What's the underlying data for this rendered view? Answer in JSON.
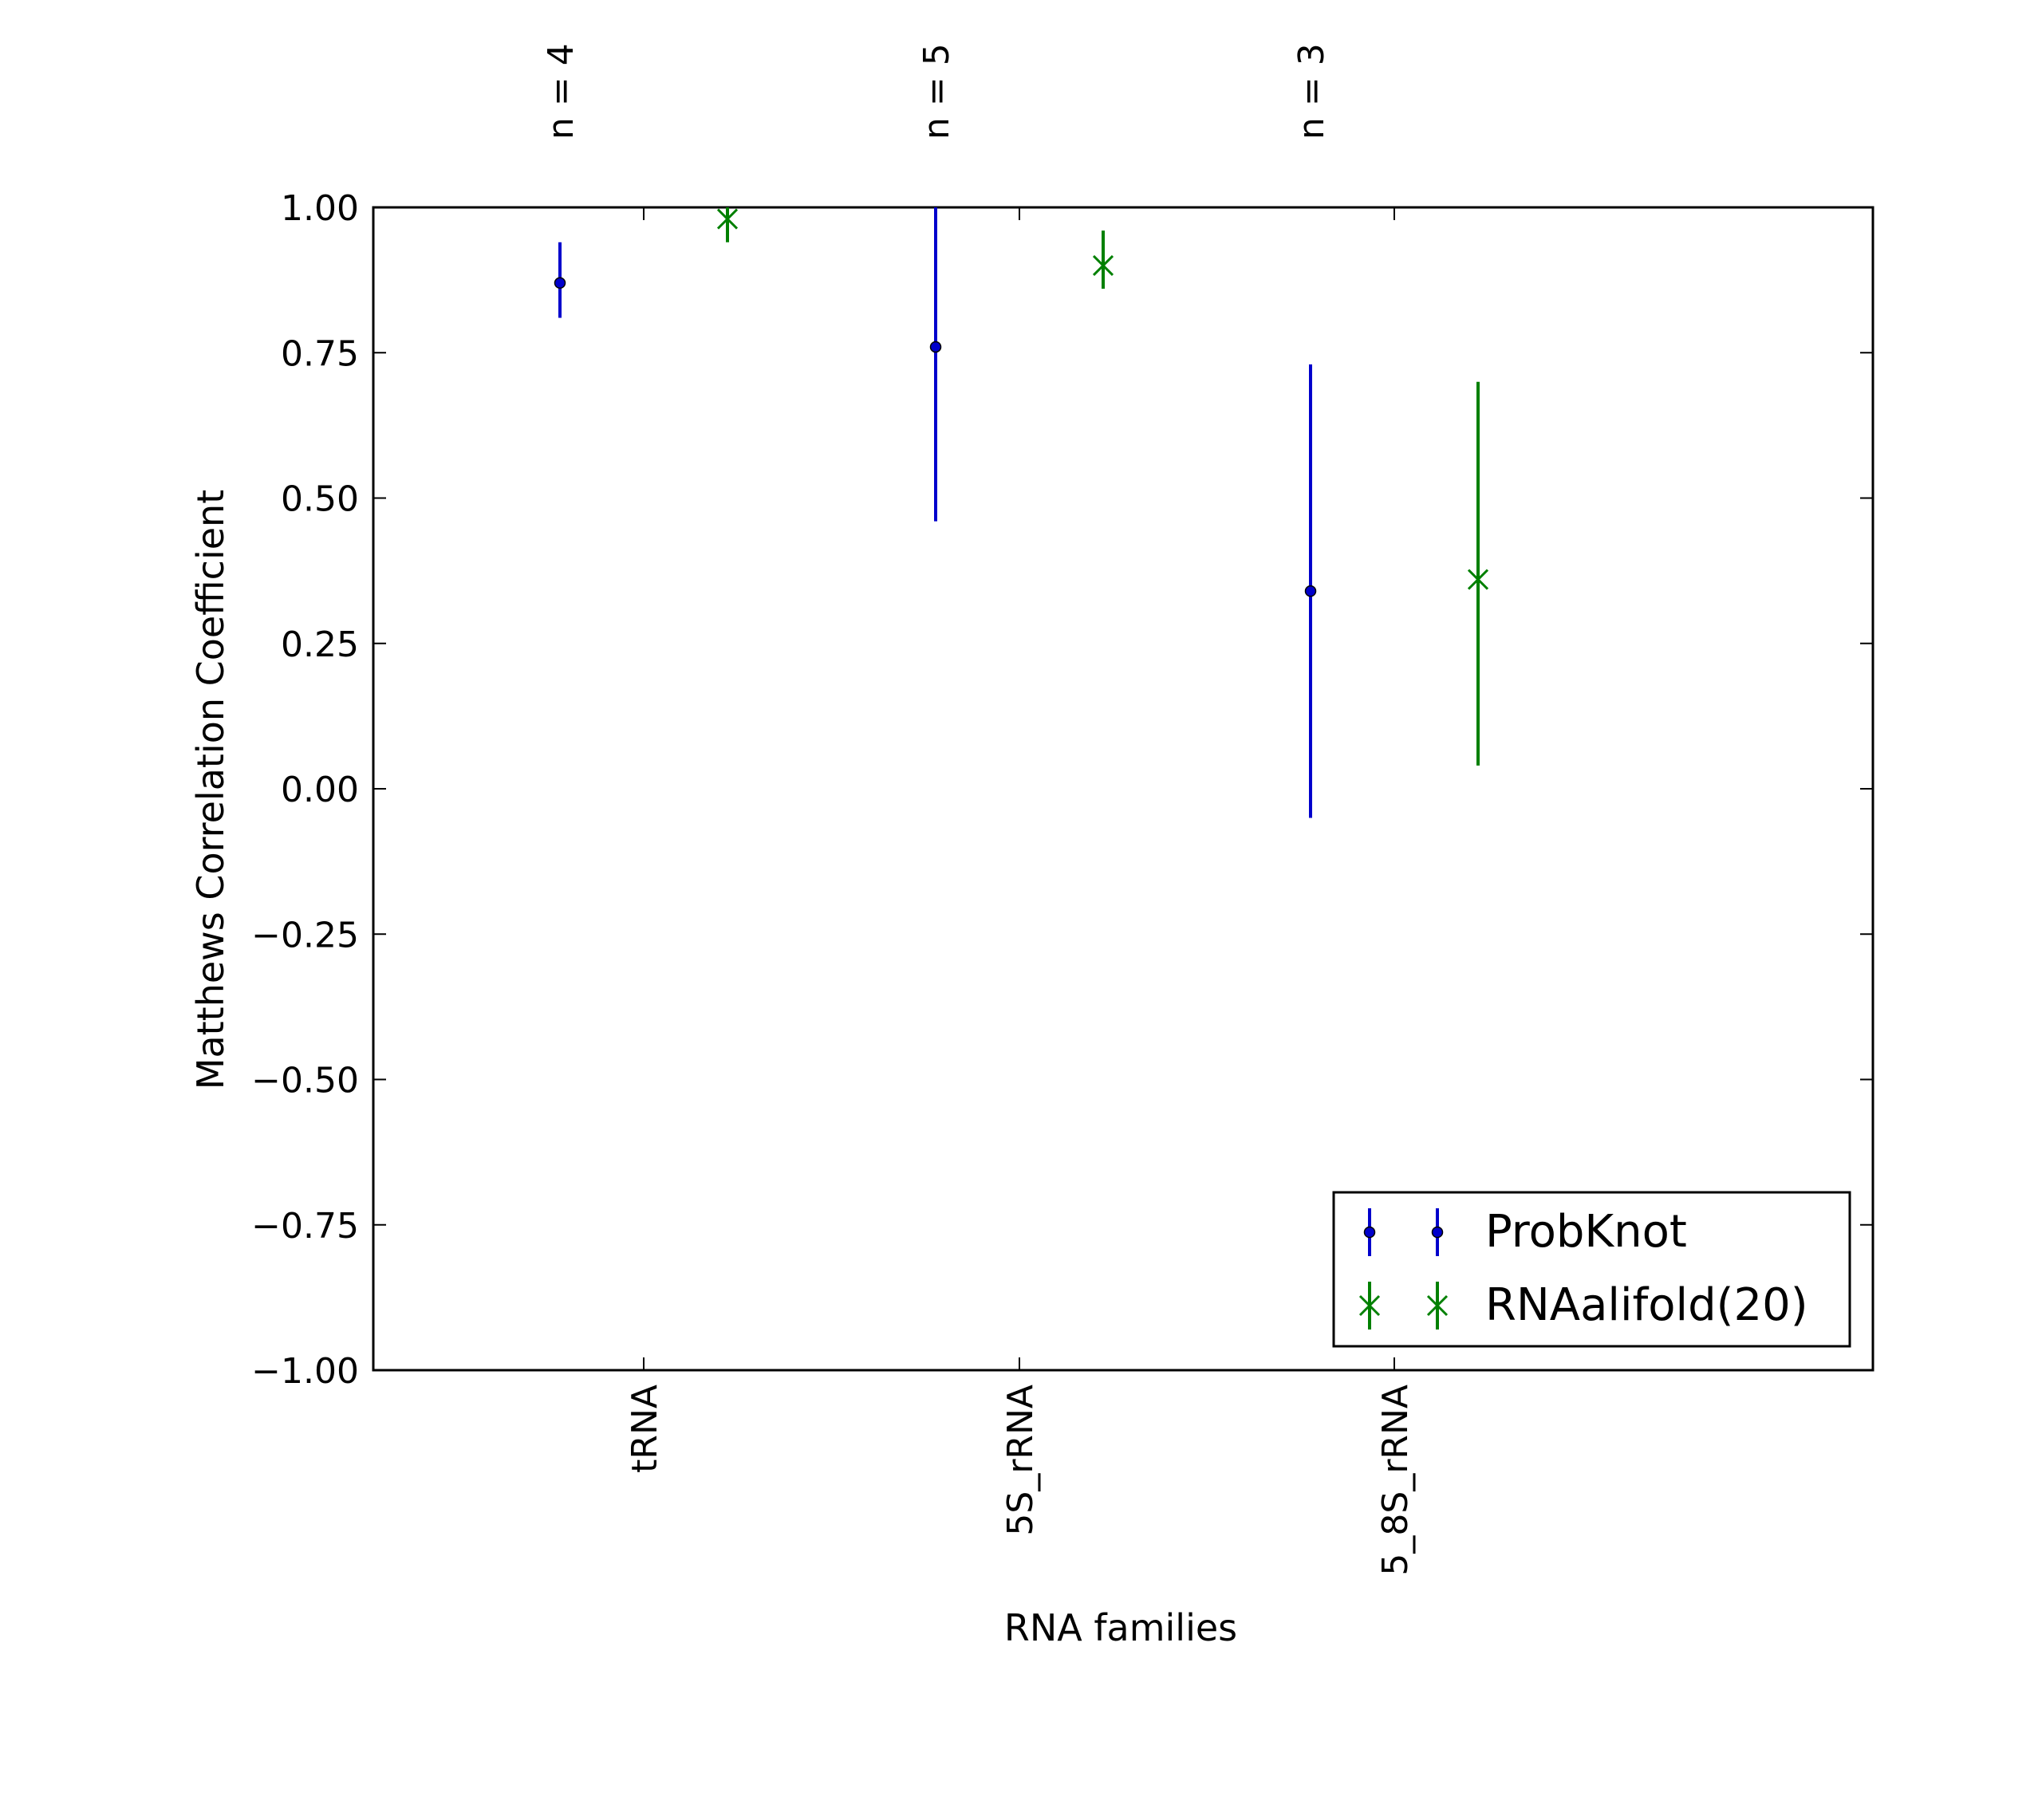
{
  "chart_data": {
    "type": "errorbar",
    "xlabel": "RNA families",
    "ylabel": "Matthews Correlation Coefficient",
    "ylim": [
      -1.0,
      1.0
    ],
    "yticks": [
      "1.00",
      "0.75",
      "0.50",
      "0.25",
      "0.00",
      "−0.25",
      "−0.50",
      "−0.75",
      "−1.00"
    ],
    "ytick_values": [
      1.0,
      0.75,
      0.5,
      0.25,
      0.0,
      -0.25,
      -0.5,
      -0.75,
      -1.0
    ],
    "categories": [
      "tRNA",
      "5S_rRNA",
      "5_8S_rRNA"
    ],
    "counts": [
      "n = 4",
      "n = 5",
      "n = 3"
    ],
    "grid": false,
    "legend_position": "lower-right",
    "series": [
      {
        "name": "ProbKnot",
        "color": "#0000cc",
        "marker": "dot",
        "values": [
          0.87,
          0.76,
          0.34
        ],
        "lower": [
          0.81,
          0.46,
          -0.05
        ],
        "upper": [
          0.94,
          1.0,
          0.73
        ]
      },
      {
        "name": "RNAalifold(20)",
        "color": "#008000",
        "marker": "x",
        "values": [
          0.98,
          0.9,
          0.36
        ],
        "lower": [
          0.94,
          0.86,
          0.04
        ],
        "upper": [
          1.0,
          0.96,
          0.7
        ]
      }
    ]
  }
}
